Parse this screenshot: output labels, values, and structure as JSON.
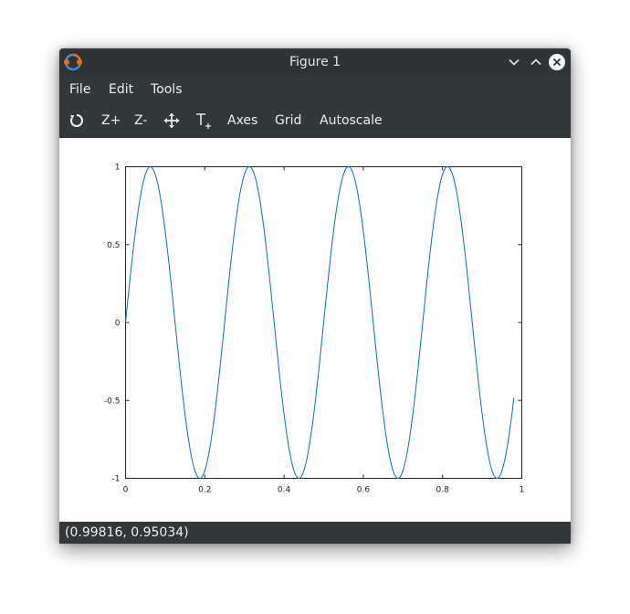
{
  "window": {
    "title": "Figure 1"
  },
  "menu": {
    "items": [
      "File",
      "Edit",
      "Tools"
    ]
  },
  "toolbar": {
    "rotate_icon": "rotate-icon",
    "zoom_in_label": "Z+",
    "zoom_out_label": "Z-",
    "pan_icon": "pan-move-icon",
    "text_icon": "insert-text-icon",
    "axes_label": "Axes",
    "grid_label": "Grid",
    "autoscale_label": "Autoscale"
  },
  "status": {
    "coordinates": "(0.99816, 0.95034)"
  },
  "colors": {
    "line": "#0072bd",
    "titlebar": "#2f3336",
    "toolbar": "#32373a"
  },
  "chart_data": {
    "type": "line",
    "title": "",
    "xlabel": "",
    "ylabel": "",
    "xlim": [
      0,
      1
    ],
    "ylim": [
      -1,
      1
    ],
    "x_ticks": [
      0,
      0.2,
      0.4,
      0.6,
      0.8,
      1
    ],
    "x_tick_labels": [
      "0",
      "0.2",
      "0.4",
      "0.6",
      "0.8",
      "1"
    ],
    "y_ticks": [
      -1,
      -0.5,
      0,
      0.5,
      1
    ],
    "y_tick_labels": [
      "-1",
      "-0.5",
      "0",
      "0.5",
      "1"
    ],
    "grid": false,
    "series": [
      {
        "function": "sin(2*pi*4*x)",
        "x_start": 0,
        "x_end": 0.98,
        "samples": 400
      }
    ]
  }
}
